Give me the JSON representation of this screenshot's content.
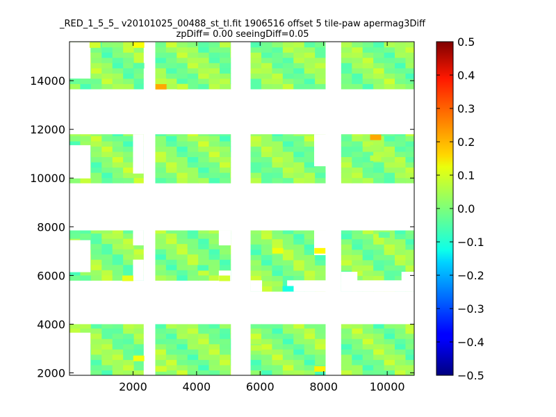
{
  "chart_data": {
    "type": "heatmap",
    "title_lines": [
      "_RED_1_5_5_ v20101025_00488_st_tl.fit 1906516 offset 5 tile-paw apermag3Diff",
      "zpDiff= 0.00 seeingDiff=0.05"
    ],
    "xlabel": "",
    "ylabel": "",
    "xlim": [
      0,
      10850
    ],
    "ylim": [
      1900,
      15600
    ],
    "xticks": [
      2000,
      4000,
      6000,
      8000,
      10000
    ],
    "yticks": [
      2000,
      4000,
      6000,
      8000,
      10000,
      12000,
      14000
    ],
    "colormap": "jet",
    "clim": [
      -0.5,
      0.5
    ],
    "colorbar_ticks": [
      0.5,
      0.4,
      0.3,
      0.2,
      0.1,
      0.0,
      -0.1,
      -0.2,
      -0.3,
      -0.4,
      -0.5
    ],
    "colorbar_tick_labels": [
      "0.5",
      "0.4",
      "0.3",
      "0.2",
      "0.1",
      "0.0",
      "−0.1",
      "−0.2",
      "−0.3",
      "−0.4",
      "−0.5"
    ],
    "cell_size": [
      337.5,
      215
    ],
    "grid": false,
    "base_value": 0.01,
    "regions": [
      {
        "x0": 0,
        "x1": 2325,
        "y0": 13660,
        "y1": 15580
      },
      {
        "x0": 2700,
        "x1": 5070,
        "y0": 13660,
        "y1": 15580
      },
      {
        "x0": 5700,
        "x1": 8050,
        "y0": 13660,
        "y1": 15580
      },
      {
        "x0": 8550,
        "x1": 10850,
        "y0": 13660,
        "y1": 15580
      },
      {
        "x0": 0,
        "x1": 2325,
        "y0": 9800,
        "y1": 11800
      },
      {
        "x0": 2700,
        "x1": 5070,
        "y0": 9800,
        "y1": 11800
      },
      {
        "x0": 5700,
        "x1": 8050,
        "y0": 9800,
        "y1": 11800
      },
      {
        "x0": 8550,
        "x1": 10850,
        "y0": 9800,
        "y1": 11800
      },
      {
        "x0": 0,
        "x1": 2325,
        "y0": 5800,
        "y1": 7850
      },
      {
        "x0": 2700,
        "x1": 5070,
        "y0": 5800,
        "y1": 7850
      },
      {
        "x0": 5700,
        "x1": 8050,
        "y0": 5350,
        "y1": 7850
      },
      {
        "x0": 8550,
        "x1": 10850,
        "y0": 5350,
        "y1": 7850
      },
      {
        "x0": 0,
        "x1": 2325,
        "y0": 1900,
        "y1": 4000
      },
      {
        "x0": 2700,
        "x1": 5070,
        "y0": 1900,
        "y1": 4000
      },
      {
        "x0": 5700,
        "x1": 8050,
        "y0": 1900,
        "y1": 4000
      },
      {
        "x0": 8550,
        "x1": 10850,
        "y0": 1900,
        "y1": 4000
      }
    ],
    "blank_areas": [
      {
        "x0": 0,
        "x1": 650,
        "y0": 14100,
        "y1": 15580
      },
      {
        "x0": 0,
        "x1": 650,
        "y0": 10000,
        "y1": 11350
      },
      {
        "x0": 0,
        "x1": 650,
        "y0": 6150,
        "y1": 7450
      },
      {
        "x0": 0,
        "x1": 650,
        "y0": 1900,
        "y1": 3650
      },
      {
        "x0": 2000,
        "x1": 2325,
        "y0": 10200,
        "y1": 11800
      },
      {
        "x0": 2000,
        "x1": 2325,
        "y0": 7250,
        "y1": 7850
      },
      {
        "x0": 2000,
        "x1": 2325,
        "y0": 5800,
        "y1": 6650
      },
      {
        "x0": 4700,
        "x1": 5070,
        "y0": 7250,
        "y1": 7850
      },
      {
        "x0": 4700,
        "x1": 5070,
        "y0": 5800,
        "y1": 6200
      },
      {
        "x0": 7700,
        "x1": 8050,
        "y0": 10500,
        "y1": 11800
      },
      {
        "x0": 7700,
        "x1": 8050,
        "y0": 6850,
        "y1": 7850
      },
      {
        "x0": 5700,
        "x1": 6050,
        "y0": 5350,
        "y1": 5800
      },
      {
        "x0": 6850,
        "x1": 8050,
        "y0": 5350,
        "y1": 5800
      },
      {
        "x0": 8550,
        "x1": 9050,
        "y0": 5350,
        "y1": 6150
      },
      {
        "x0": 10450,
        "x1": 10850,
        "y0": 5800,
        "y1": 6150
      },
      {
        "x0": 8550,
        "x1": 10850,
        "y0": 5350,
        "y1": 5800
      },
      {
        "x0": 0,
        "x1": 650,
        "y0": 4000,
        "y1": 3650
      }
    ],
    "hot_cells": [
      {
        "x": 2875,
        "y": 13760,
        "value": 0.21
      },
      {
        "x": 2175,
        "y": 15470,
        "value": 0.12
      },
      {
        "x": 800,
        "y": 15470,
        "value": 0.08
      },
      {
        "x": 3550,
        "y": 13760,
        "value": 0.07
      },
      {
        "x": 2875,
        "y": 13980,
        "value": 0.06
      },
      {
        "x": 2175,
        "y": 14620,
        "value": -0.04
      },
      {
        "x": 9630,
        "y": 11680,
        "value": 0.21
      },
      {
        "x": 9630,
        "y": 11250,
        "value": 0.04
      },
      {
        "x": 9630,
        "y": 10820,
        "value": 0.06
      },
      {
        "x": 6550,
        "y": 7020,
        "value": 0.11
      },
      {
        "x": 7875,
        "y": 7020,
        "value": 0.13
      },
      {
        "x": 1830,
        "y": 5890,
        "value": 0.1
      },
      {
        "x": 4875,
        "y": 5890,
        "value": 0.08
      },
      {
        "x": 6875,
        "y": 5460,
        "value": -0.1
      },
      {
        "x": 4200,
        "y": 6320,
        "value": -0.05
      },
      {
        "x": 9900,
        "y": 7670,
        "value": -0.03
      },
      {
        "x": 2175,
        "y": 2600,
        "value": 0.11
      },
      {
        "x": 2875,
        "y": 2170,
        "value": 0.08
      },
      {
        "x": 7875,
        "y": 2170,
        "value": 0.14
      },
      {
        "x": 5875,
        "y": 3030,
        "value": 0.06
      }
    ]
  }
}
